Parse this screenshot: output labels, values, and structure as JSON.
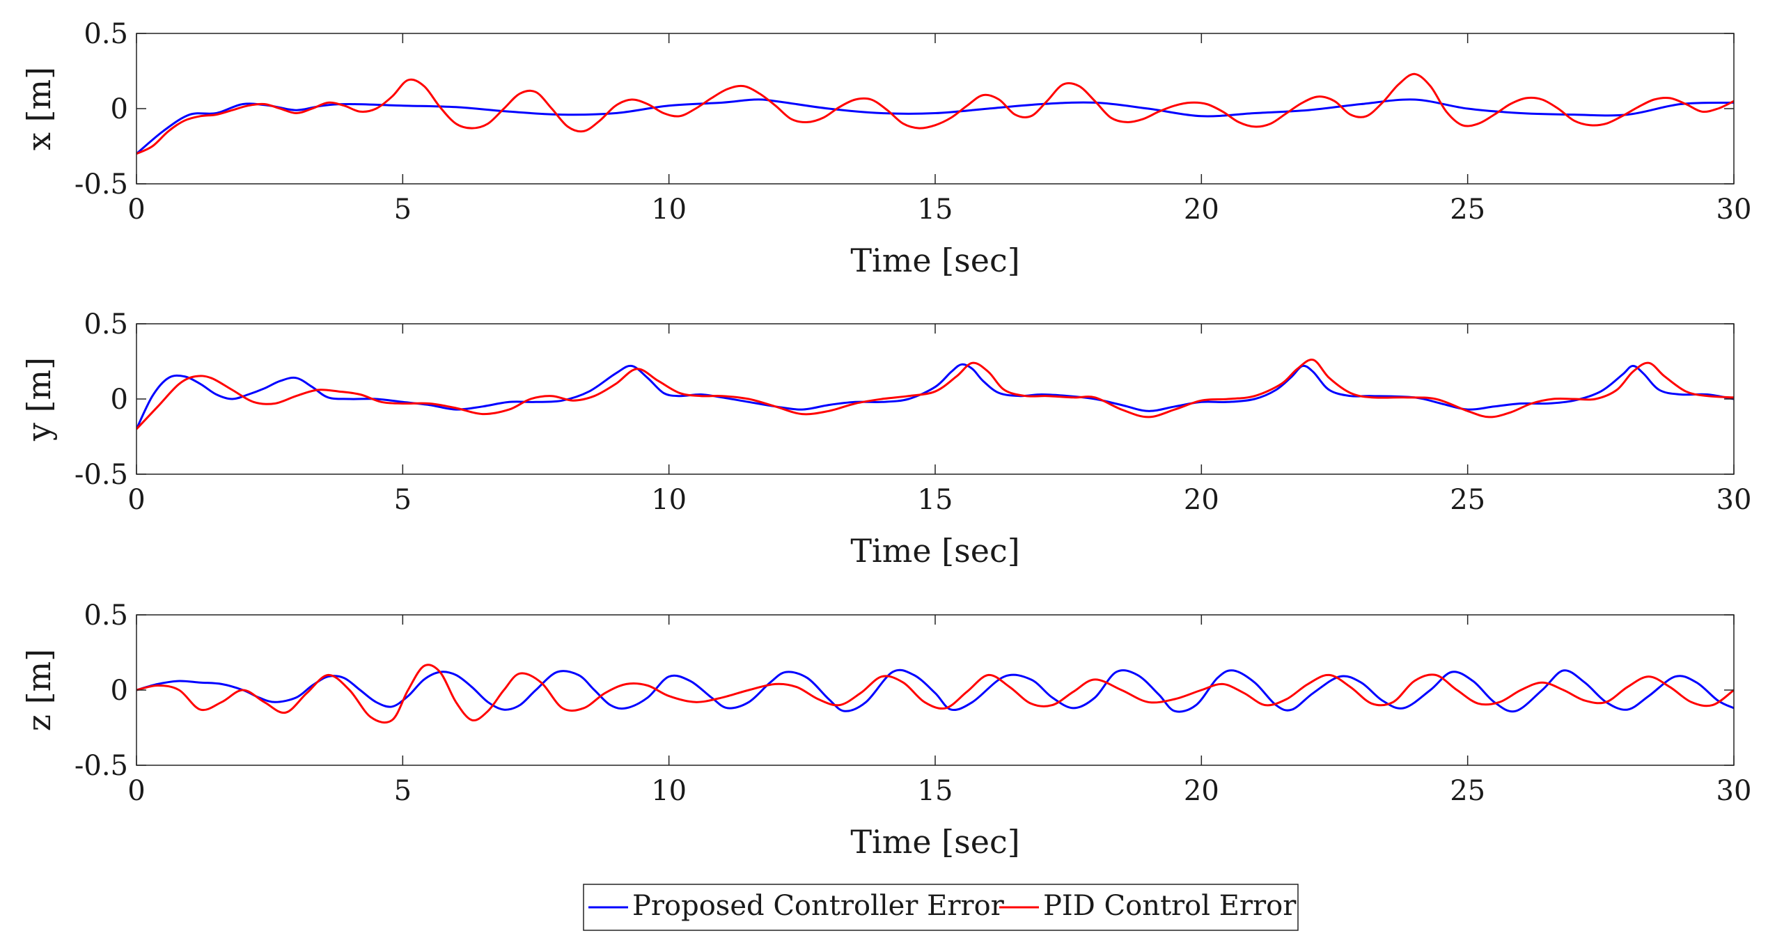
{
  "chart_data": [
    {
      "type": "line",
      "ylabel": "x [m]",
      "xlabel": "Time [sec]",
      "xlim": [
        0,
        30
      ],
      "ylim": [
        -0.5,
        0.5
      ],
      "xticks": [
        "0",
        "5",
        "10",
        "15",
        "20",
        "25",
        "30"
      ],
      "yticks": [
        "0.5",
        "0",
        "-0.5"
      ],
      "series": [
        {
          "name": "Proposed Controller Error",
          "color": "#0000ff",
          "x": [
            0,
            0.5,
            1,
            1.5,
            2,
            2.5,
            3,
            3.5,
            4,
            5,
            6,
            7,
            8,
            9,
            10,
            11,
            11.6,
            12,
            13,
            14,
            15,
            16,
            17,
            18,
            19,
            20,
            21,
            22,
            23,
            24,
            25,
            26,
            27,
            28,
            29,
            30
          ],
          "y": [
            -0.3,
            -0.15,
            -0.04,
            -0.03,
            0.03,
            0.02,
            -0.01,
            0.02,
            0.03,
            0.02,
            0.01,
            -0.02,
            -0.04,
            -0.03,
            0.02,
            0.04,
            0.06,
            0.05,
            0.0,
            -0.03,
            -0.03,
            0.0,
            0.03,
            0.04,
            0.0,
            -0.05,
            -0.03,
            -0.01,
            0.03,
            0.06,
            0.0,
            -0.03,
            -0.04,
            -0.04,
            0.03,
            0.04
          ]
        },
        {
          "name": "PID Control Error",
          "color": "#ff0000",
          "x": [
            0,
            0.3,
            0.6,
            0.9,
            1.2,
            1.5,
            1.8,
            2.1,
            2.4,
            2.7,
            3.0,
            3.3,
            3.6,
            3.9,
            4.2,
            4.5,
            4.8,
            5.1,
            5.4,
            5.7,
            6.0,
            6.3,
            6.6,
            6.9,
            7.2,
            7.5,
            7.8,
            8.1,
            8.4,
            8.7,
            9.0,
            9.3,
            9.6,
            9.9,
            10.2,
            10.5,
            10.8,
            11.1,
            11.4,
            11.7,
            12.0,
            12.3,
            12.6,
            12.9,
            13.2,
            13.5,
            13.8,
            14.1,
            14.4,
            14.7,
            15.0,
            15.3,
            15.6,
            15.9,
            16.2,
            16.5,
            16.8,
            17.1,
            17.4,
            17.7,
            18.0,
            18.3,
            18.6,
            18.9,
            19.2,
            19.5,
            19.8,
            20.1,
            20.4,
            20.7,
            21.0,
            21.3,
            21.6,
            21.9,
            22.2,
            22.5,
            22.8,
            23.1,
            23.4,
            23.7,
            24.0,
            24.3,
            24.6,
            24.9,
            25.2,
            25.5,
            25.8,
            26.1,
            26.4,
            26.7,
            27.0,
            27.3,
            27.6,
            27.9,
            28.2,
            28.5,
            28.8,
            29.1,
            29.4,
            29.7,
            30.0
          ],
          "y": [
            -0.3,
            -0.25,
            -0.15,
            -0.08,
            -0.05,
            -0.04,
            -0.01,
            0.02,
            0.03,
            0.0,
            -0.03,
            0.0,
            0.04,
            0.02,
            -0.02,
            0.0,
            0.08,
            0.19,
            0.15,
            0.01,
            -0.1,
            -0.13,
            -0.1,
            0.0,
            0.1,
            0.11,
            0.0,
            -0.12,
            -0.15,
            -0.08,
            0.02,
            0.06,
            0.03,
            -0.03,
            -0.05,
            0.0,
            0.07,
            0.13,
            0.15,
            0.1,
            0.02,
            -0.07,
            -0.09,
            -0.06,
            0.01,
            0.06,
            0.06,
            -0.01,
            -0.1,
            -0.13,
            -0.11,
            -0.06,
            0.02,
            0.09,
            0.06,
            -0.04,
            -0.05,
            0.05,
            0.16,
            0.15,
            0.05,
            -0.06,
            -0.09,
            -0.07,
            -0.02,
            0.02,
            0.04,
            0.03,
            -0.02,
            -0.09,
            -0.12,
            -0.1,
            -0.03,
            0.04,
            0.08,
            0.05,
            -0.04,
            -0.05,
            0.04,
            0.16,
            0.23,
            0.15,
            -0.02,
            -0.11,
            -0.1,
            -0.04,
            0.03,
            0.07,
            0.06,
            0.0,
            -0.08,
            -0.11,
            -0.1,
            -0.05,
            0.01,
            0.06,
            0.07,
            0.03,
            -0.02,
            0.0,
            0.05
          ]
        }
      ]
    },
    {
      "type": "line",
      "ylabel": "y [m]",
      "xlabel": "Time [sec]",
      "xlim": [
        0,
        30
      ],
      "ylim": [
        -0.5,
        0.5
      ],
      "xticks": [
        "0",
        "5",
        "10",
        "15",
        "20",
        "25",
        "30"
      ],
      "yticks": [
        "0.5",
        "0",
        "-0.5"
      ],
      "series": [
        {
          "name": "Proposed Controller Error",
          "color": "#0000ff",
          "x": [
            0,
            0.3,
            0.6,
            0.9,
            1.2,
            1.5,
            1.8,
            2.1,
            2.4,
            2.7,
            3.0,
            3.3,
            3.6,
            4.0,
            4.5,
            5.0,
            5.5,
            6.0,
            6.5,
            7.0,
            7.5,
            8.0,
            8.5,
            9.0,
            9.3,
            9.6,
            9.9,
            10.2,
            10.6,
            11,
            11.5,
            12,
            12.5,
            13,
            13.5,
            14,
            14.5,
            15,
            15.3,
            15.5,
            15.7,
            15.9,
            16.2,
            16.6,
            17,
            17.5,
            18,
            18.5,
            19,
            19.5,
            20,
            20.5,
            21,
            21.4,
            21.7,
            21.9,
            22.1,
            22.4,
            22.8,
            23.2,
            24,
            24.5,
            25,
            25.5,
            26,
            26.5,
            27,
            27.5,
            27.9,
            28.1,
            28.3,
            28.6,
            29,
            29.5,
            30
          ],
          "y": [
            -0.2,
            0.02,
            0.14,
            0.15,
            0.1,
            0.03,
            0.0,
            0.03,
            0.07,
            0.12,
            0.14,
            0.08,
            0.01,
            0.0,
            0.0,
            -0.02,
            -0.04,
            -0.07,
            -0.05,
            -0.02,
            -0.02,
            -0.01,
            0.05,
            0.17,
            0.22,
            0.14,
            0.04,
            0.02,
            0.03,
            0.01,
            -0.02,
            -0.05,
            -0.07,
            -0.04,
            -0.02,
            -0.02,
            0.0,
            0.08,
            0.18,
            0.23,
            0.2,
            0.12,
            0.04,
            0.02,
            0.03,
            0.02,
            0.0,
            -0.04,
            -0.08,
            -0.05,
            -0.02,
            -0.02,
            0.0,
            0.06,
            0.15,
            0.22,
            0.18,
            0.06,
            0.02,
            0.02,
            0.01,
            -0.03,
            -0.07,
            -0.05,
            -0.03,
            -0.03,
            -0.01,
            0.05,
            0.16,
            0.22,
            0.17,
            0.06,
            0.03,
            0.03,
            0.0
          ]
        },
        {
          "name": "PID Control Error",
          "color": "#ff0000",
          "x": [
            0,
            0.4,
            0.8,
            1.1,
            1.4,
            1.8,
            2.2,
            2.6,
            3.0,
            3.4,
            3.8,
            4.2,
            4.6,
            5.0,
            5.5,
            6.0,
            6.5,
            7.0,
            7.4,
            7.8,
            8.2,
            8.6,
            9.0,
            9.4,
            9.8,
            10.2,
            10.6,
            11,
            11.5,
            12,
            12.5,
            13,
            13.5,
            14,
            14.5,
            15,
            15.4,
            15.7,
            16,
            16.3,
            16.7,
            17.1,
            17.6,
            18,
            18.5,
            19,
            19.5,
            20,
            20.5,
            21,
            21.5,
            21.8,
            22.1,
            22.4,
            22.8,
            23.2,
            23.8,
            24.4,
            25,
            25.4,
            25.8,
            26.2,
            26.6,
            27,
            27.4,
            27.8,
            28.1,
            28.4,
            28.7,
            29.1,
            29.5,
            30
          ],
          "y": [
            -0.2,
            -0.05,
            0.1,
            0.15,
            0.14,
            0.06,
            -0.02,
            -0.03,
            0.02,
            0.06,
            0.05,
            0.03,
            -0.02,
            -0.03,
            -0.03,
            -0.06,
            -0.1,
            -0.07,
            0.0,
            0.02,
            -0.01,
            0.02,
            0.1,
            0.2,
            0.12,
            0.04,
            0.02,
            0.02,
            0.0,
            -0.05,
            -0.1,
            -0.08,
            -0.03,
            0.0,
            0.02,
            0.05,
            0.15,
            0.24,
            0.18,
            0.06,
            0.02,
            0.02,
            0.01,
            0.01,
            -0.07,
            -0.12,
            -0.07,
            -0.01,
            0.0,
            0.02,
            0.1,
            0.2,
            0.26,
            0.14,
            0.04,
            0.01,
            0.01,
            0.0,
            -0.08,
            -0.12,
            -0.09,
            -0.03,
            0.0,
            0.0,
            0.0,
            0.06,
            0.18,
            0.24,
            0.15,
            0.05,
            0.02,
            0.01
          ]
        }
      ]
    },
    {
      "type": "line",
      "ylabel": "z [m]",
      "xlabel": "Time [sec]",
      "xlim": [
        0,
        30
      ],
      "ylim": [
        -0.5,
        0.5
      ],
      "xticks": [
        "0",
        "5",
        "10",
        "15",
        "20",
        "25",
        "30"
      ],
      "yticks": [
        "0.5",
        "0",
        "-0.5"
      ],
      "series": [
        {
          "name": "Proposed Controller Error",
          "color": "#0000ff",
          "x": [
            0,
            0.4,
            0.8,
            1.2,
            1.6,
            2.0,
            2.3,
            2.6,
            3.0,
            3.3,
            3.6,
            3.9,
            4.2,
            4.5,
            4.8,
            5.1,
            5.4,
            5.7,
            6.0,
            6.3,
            6.6,
            6.9,
            7.2,
            7.5,
            7.9,
            8.3,
            8.6,
            8.9,
            9.2,
            9.6,
            10.0,
            10.4,
            10.8,
            11.1,
            11.5,
            11.9,
            12.2,
            12.6,
            13.0,
            13.3,
            13.7,
            14.2,
            14.6,
            15.0,
            15.3,
            15.7,
            16.3,
            16.8,
            17.2,
            17.6,
            18.0,
            18.4,
            18.8,
            19.2,
            19.5,
            19.9,
            20.3,
            20.6,
            21.0,
            21.4,
            21.7,
            22.1,
            22.6,
            23.0,
            23.4,
            23.8,
            24.3,
            24.7,
            25.1,
            25.5,
            25.9,
            26.4,
            26.8,
            27.2,
            27.6,
            28.0,
            28.4,
            28.9,
            29.3,
            29.7,
            30.0
          ],
          "y": [
            0.0,
            0.04,
            0.06,
            0.05,
            0.04,
            0.0,
            -0.05,
            -0.08,
            -0.05,
            0.03,
            0.09,
            0.08,
            0.0,
            -0.08,
            -0.11,
            -0.04,
            0.07,
            0.12,
            0.1,
            0.02,
            -0.08,
            -0.13,
            -0.1,
            0.0,
            0.12,
            0.1,
            0.0,
            -0.1,
            -0.12,
            -0.05,
            0.09,
            0.06,
            -0.05,
            -0.12,
            -0.08,
            0.05,
            0.12,
            0.08,
            -0.06,
            -0.14,
            -0.08,
            0.12,
            0.1,
            -0.02,
            -0.13,
            -0.08,
            0.09,
            0.07,
            -0.05,
            -0.12,
            -0.05,
            0.12,
            0.1,
            -0.03,
            -0.14,
            -0.1,
            0.08,
            0.13,
            0.05,
            -0.1,
            -0.13,
            -0.02,
            0.09,
            0.05,
            -0.07,
            -0.12,
            0.0,
            0.12,
            0.06,
            -0.08,
            -0.14,
            0.0,
            0.13,
            0.05,
            -0.08,
            -0.13,
            -0.04,
            0.09,
            0.05,
            -0.07,
            -0.12
          ]
        },
        {
          "name": "PID Control Error",
          "color": "#ff0000",
          "x": [
            0,
            0.4,
            0.8,
            1.2,
            1.6,
            2.0,
            2.4,
            2.8,
            3.2,
            3.6,
            4.0,
            4.4,
            4.8,
            5.1,
            5.4,
            5.7,
            6.0,
            6.3,
            6.6,
            6.9,
            7.2,
            7.6,
            8.0,
            8.4,
            8.8,
            9.2,
            9.6,
            10.0,
            10.5,
            11.0,
            11.5,
            12.0,
            12.4,
            12.8,
            13.2,
            13.6,
            14.0,
            14.4,
            14.8,
            15.2,
            15.6,
            16.0,
            16.4,
            16.8,
            17.2,
            17.6,
            18.0,
            18.5,
            19.0,
            19.5,
            20.0,
            20.4,
            20.8,
            21.2,
            21.6,
            22.0,
            22.4,
            22.8,
            23.2,
            23.6,
            24.0,
            24.4,
            24.8,
            25.2,
            25.6,
            26.0,
            26.4,
            26.8,
            27.2,
            27.6,
            28.0,
            28.4,
            28.8,
            29.2,
            29.6,
            30.0
          ],
          "y": [
            0.0,
            0.03,
            0.0,
            -0.13,
            -0.08,
            0.0,
            -0.08,
            -0.15,
            -0.02,
            0.1,
            0.0,
            -0.18,
            -0.2,
            0.0,
            0.16,
            0.12,
            -0.08,
            -0.2,
            -0.14,
            0.0,
            0.11,
            0.05,
            -0.12,
            -0.12,
            -0.02,
            0.04,
            0.03,
            -0.04,
            -0.08,
            -0.05,
            0.0,
            0.04,
            0.02,
            -0.06,
            -0.1,
            -0.02,
            0.09,
            0.05,
            -0.08,
            -0.12,
            -0.01,
            0.1,
            0.02,
            -0.09,
            -0.1,
            -0.01,
            0.07,
            0.0,
            -0.08,
            -0.06,
            0.0,
            0.04,
            -0.02,
            -0.1,
            -0.06,
            0.04,
            0.1,
            0.02,
            -0.09,
            -0.08,
            0.06,
            0.1,
            0.0,
            -0.09,
            -0.08,
            0.0,
            0.05,
            0.0,
            -0.07,
            -0.08,
            0.02,
            0.09,
            0.02,
            -0.08,
            -0.1,
            0.0
          ]
        }
      ]
    }
  ],
  "legend": {
    "entries": [
      {
        "label": "Proposed Controller Error",
        "color": "#0000ff"
      },
      {
        "label": "PID Control Error",
        "color": "#ff0000"
      }
    ],
    "placement": "bottom-center"
  }
}
